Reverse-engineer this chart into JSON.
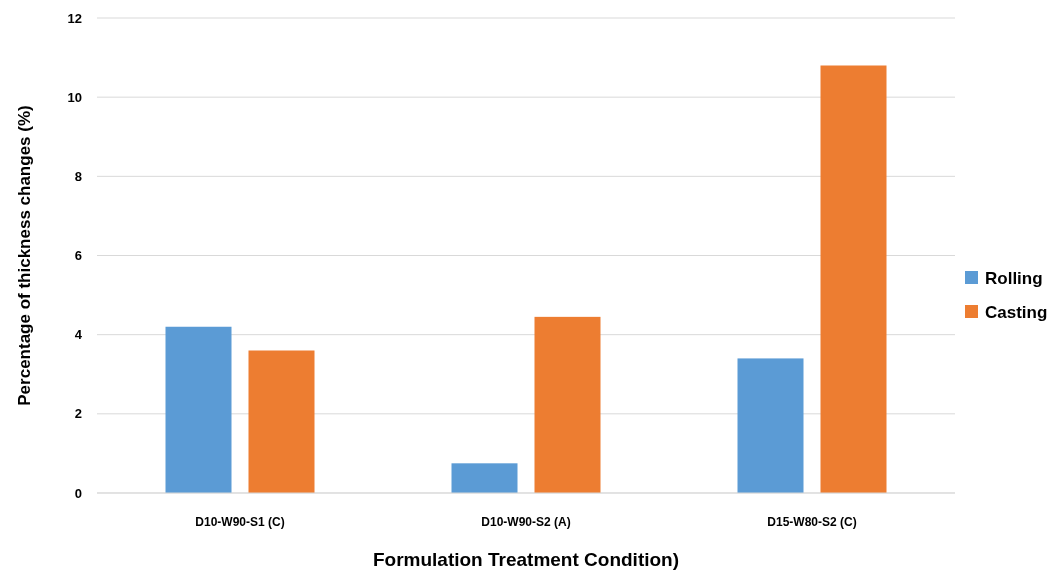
{
  "chart_data": {
    "type": "bar",
    "xlabel": "Formulation Treatment Condition)",
    "ylabel": "Percentage of thickness changes (%)",
    "categories": [
      "D10-W90-S1 (C)",
      "D10-W90-S2 (A)",
      "D15-W80-S2 (C)"
    ],
    "series": [
      {
        "name": "Rolling",
        "color": "#5b9bd5",
        "values": [
          4.2,
          0.75,
          3.4
        ]
      },
      {
        "name": "Casting",
        "color": "#ed7d31",
        "values": [
          3.6,
          4.45,
          10.8
        ]
      }
    ],
    "ylim": [
      0,
      12
    ],
    "yticks": [
      0,
      2,
      4,
      6,
      8,
      10,
      12
    ],
    "grid": "y",
    "legend": "right"
  }
}
